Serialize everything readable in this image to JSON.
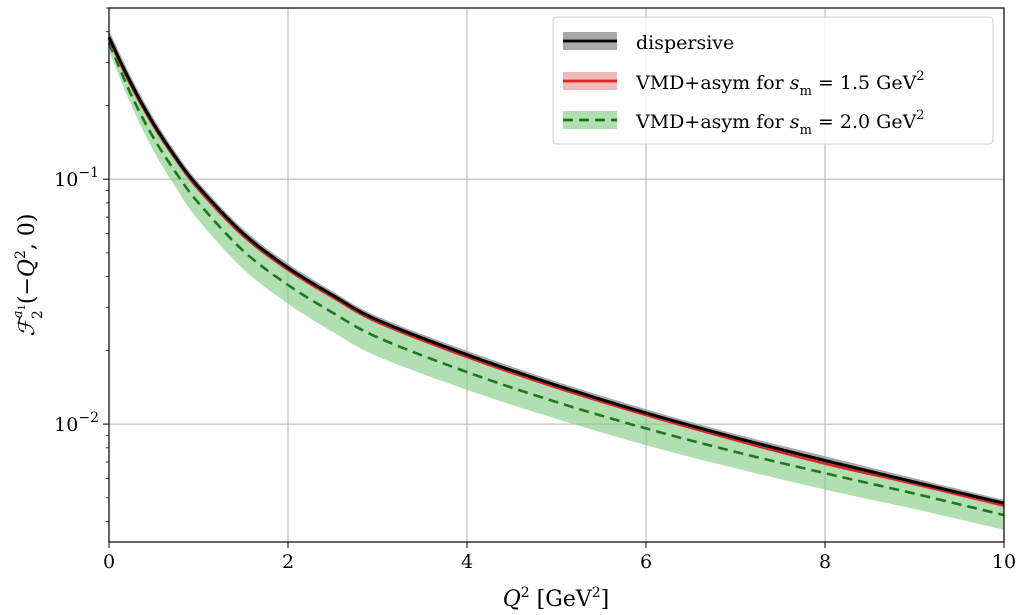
{
  "chart_data": {
    "type": "line",
    "title": "",
    "xlabel": "Q² [GeV²]",
    "ylabel": "ℱ₂^{a₁}(−Q², 0)",
    "xlim": [
      0,
      10
    ],
    "ylim": [
      0.0033,
      0.5
    ],
    "yscale": "log",
    "grid": true,
    "legend_position": "top-right",
    "x_ticks": [
      "0",
      "2",
      "4",
      "6",
      "8",
      "10"
    ],
    "y_ticks": [
      {
        "value": 0.1,
        "base": "10",
        "exp": "−1"
      },
      {
        "value": 0.01,
        "base": "10",
        "exp": "−2"
      }
    ],
    "x": [
      0,
      0.25,
      0.5,
      0.75,
      1,
      1.5,
      2,
      2.5,
      3,
      4,
      5,
      6,
      7,
      8,
      9,
      10
    ],
    "series": [
      {
        "name": "dispersive",
        "color": "#000000",
        "band_color": "#999999",
        "style": "solid",
        "values": [
          0.38,
          0.245,
          0.168,
          0.122,
          0.093,
          0.06,
          0.0435,
          0.0336,
          0.0266,
          0.0192,
          0.0144,
          0.0111,
          0.0088,
          0.0071,
          0.0058,
          0.00475
        ],
        "band_low": [
          0.355,
          0.232,
          0.16,
          0.117,
          0.089,
          0.0576,
          0.0419,
          0.0324,
          0.0257,
          0.0186,
          0.014,
          0.0108,
          0.0086,
          0.0069,
          0.0056,
          0.0046
        ],
        "band_high": [
          0.405,
          0.26,
          0.177,
          0.128,
          0.097,
          0.0625,
          0.0452,
          0.0348,
          0.0275,
          0.0199,
          0.0149,
          0.0115,
          0.0091,
          0.0074,
          0.006,
          0.0049
        ]
      },
      {
        "name": "VMD+asym for s_m = 1.5 GeV²",
        "color": "#d62728",
        "band_color": "#e88a8a",
        "style": "solid",
        "values": [
          0.375,
          0.24,
          0.165,
          0.12,
          0.091,
          0.0588,
          0.0427,
          0.033,
          0.0261,
          0.0188,
          0.0141,
          0.0109,
          0.0086,
          0.0069,
          0.0057,
          0.00465
        ],
        "band_low": [
          0.368,
          0.236,
          0.162,
          0.118,
          0.0895,
          0.0578,
          0.042,
          0.0324,
          0.0257,
          0.0185,
          0.0139,
          0.0107,
          0.0085,
          0.0068,
          0.0056,
          0.00455
        ],
        "band_high": [
          0.382,
          0.244,
          0.168,
          0.122,
          0.0925,
          0.0598,
          0.0434,
          0.0336,
          0.0265,
          0.0191,
          0.0143,
          0.0111,
          0.0087,
          0.007,
          0.0058,
          0.00475
        ]
      },
      {
        "name": "VMD+asym for s_m = 2.0 GeV²",
        "color": "#1a7a1a",
        "band_color": "#7fc97f",
        "style": "dashed",
        "values": [
          0.36,
          0.22,
          0.147,
          0.106,
          0.08,
          0.051,
          0.037,
          0.0285,
          0.0226,
          0.0163,
          0.0123,
          0.0096,
          0.0077,
          0.0063,
          0.0052,
          0.00425
        ],
        "band_low": [
          0.335,
          0.2,
          0.13,
          0.092,
          0.068,
          0.043,
          0.031,
          0.0238,
          0.0189,
          0.0138,
          0.0105,
          0.0082,
          0.0066,
          0.0054,
          0.0045,
          0.0037
        ],
        "band_high": [
          0.375,
          0.238,
          0.162,
          0.118,
          0.09,
          0.058,
          0.0422,
          0.0326,
          0.0259,
          0.0186,
          0.014,
          0.0108,
          0.0086,
          0.0069,
          0.0057,
          0.0047
        ]
      }
    ]
  }
}
